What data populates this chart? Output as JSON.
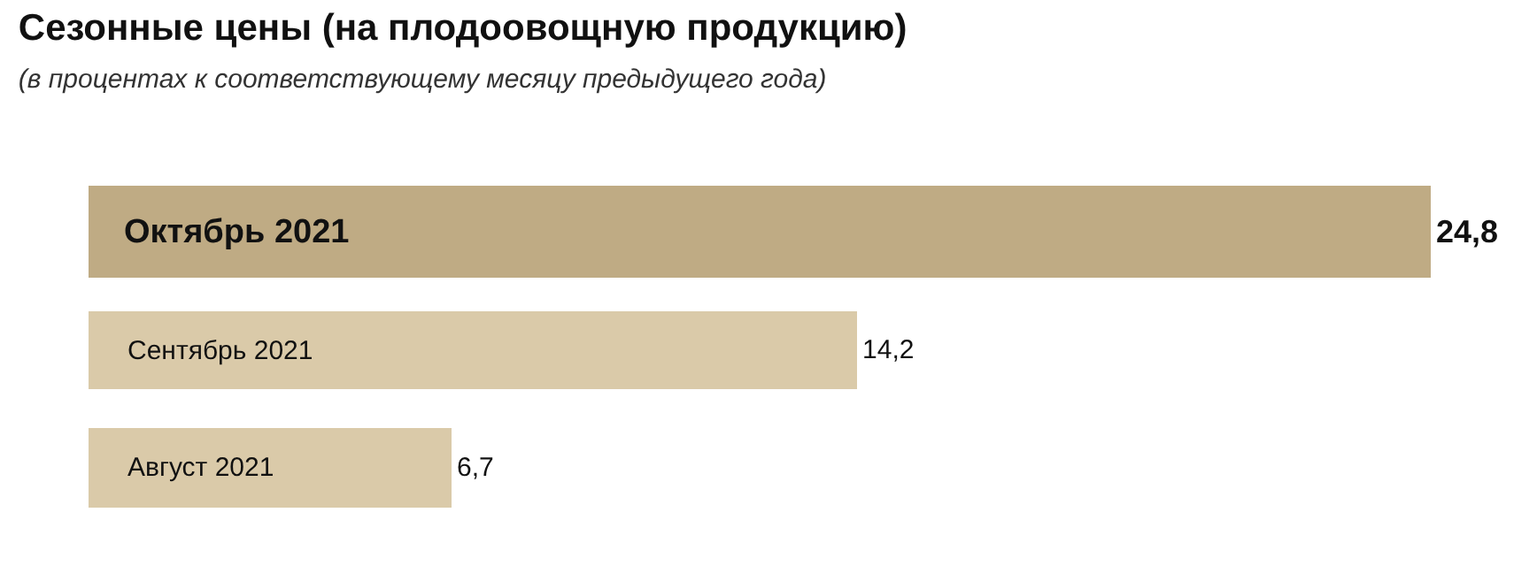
{
  "chart_data": {
    "type": "bar",
    "orientation": "horizontal",
    "title": "Сезонные цены (на плодоовощную продукцию)",
    "subtitle": "(в процентах к соответствующему месяцу предыдущего года)",
    "categories": [
      "Октябрь 2021",
      "Сентябрь 2021",
      "Август 2021"
    ],
    "values": [
      24.8,
      14.2,
      6.7
    ],
    "value_labels": [
      "24,8",
      "14,2",
      "6,7"
    ],
    "colors": [
      "#bfab84",
      "#dacaa9",
      "#dacaa9"
    ]
  }
}
